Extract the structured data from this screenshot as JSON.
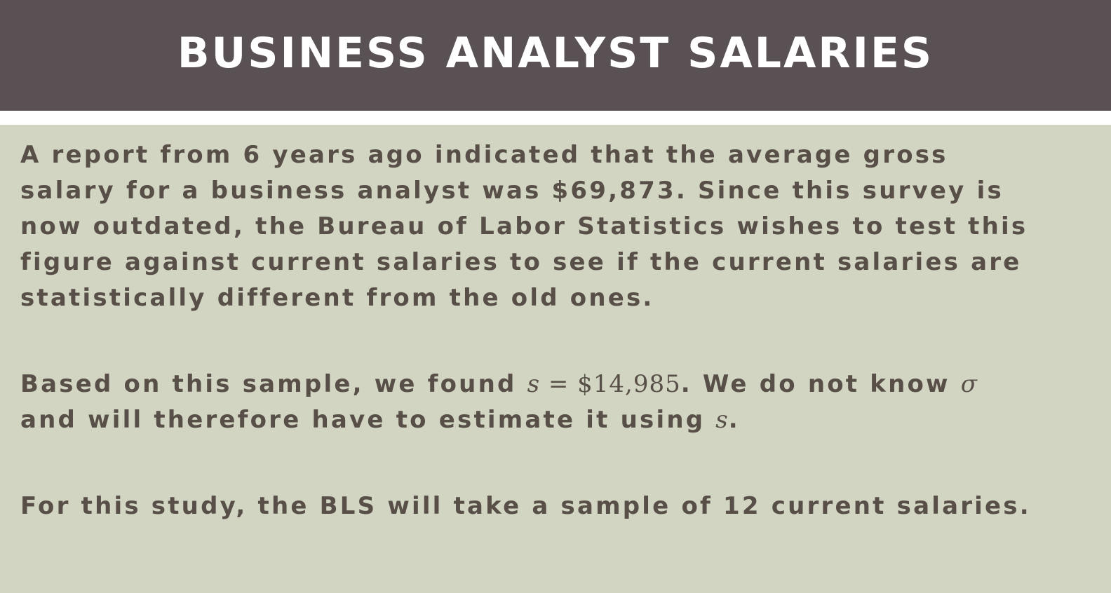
{
  "slide": {
    "title": "BUSINESS ANALYST SALARIES",
    "paragraph1": {
      "lines": [
        "A report from 6 years ago indicated that the average gross",
        "salary for a business analyst was $69,873. Since this survey is",
        "now outdated, the Bureau of Labor Statistics wishes to test this",
        "figure against current salaries to see if the current salaries are",
        "statistically different from the old ones."
      ]
    },
    "paragraph2": {
      "line1_text": "Based on this sample, we found ",
      "line1_var": "s",
      "line1_eq": " = ",
      "line1_value": "$14,985",
      "line1_text2": ". We do not know ",
      "line1_sigma": "σ",
      "line2_text": "and will therefore have to estimate it using ",
      "line2_var": "s",
      "line2_end": "."
    },
    "paragraph3": {
      "text": "For this study, the BLS will take a sample of 12 current salaries."
    }
  },
  "colors": {
    "title_bar": "#5a5151",
    "title_text": "#ffffff",
    "background": "#d3d5c3",
    "body_text": "#585048",
    "separator": "#ffffff"
  }
}
